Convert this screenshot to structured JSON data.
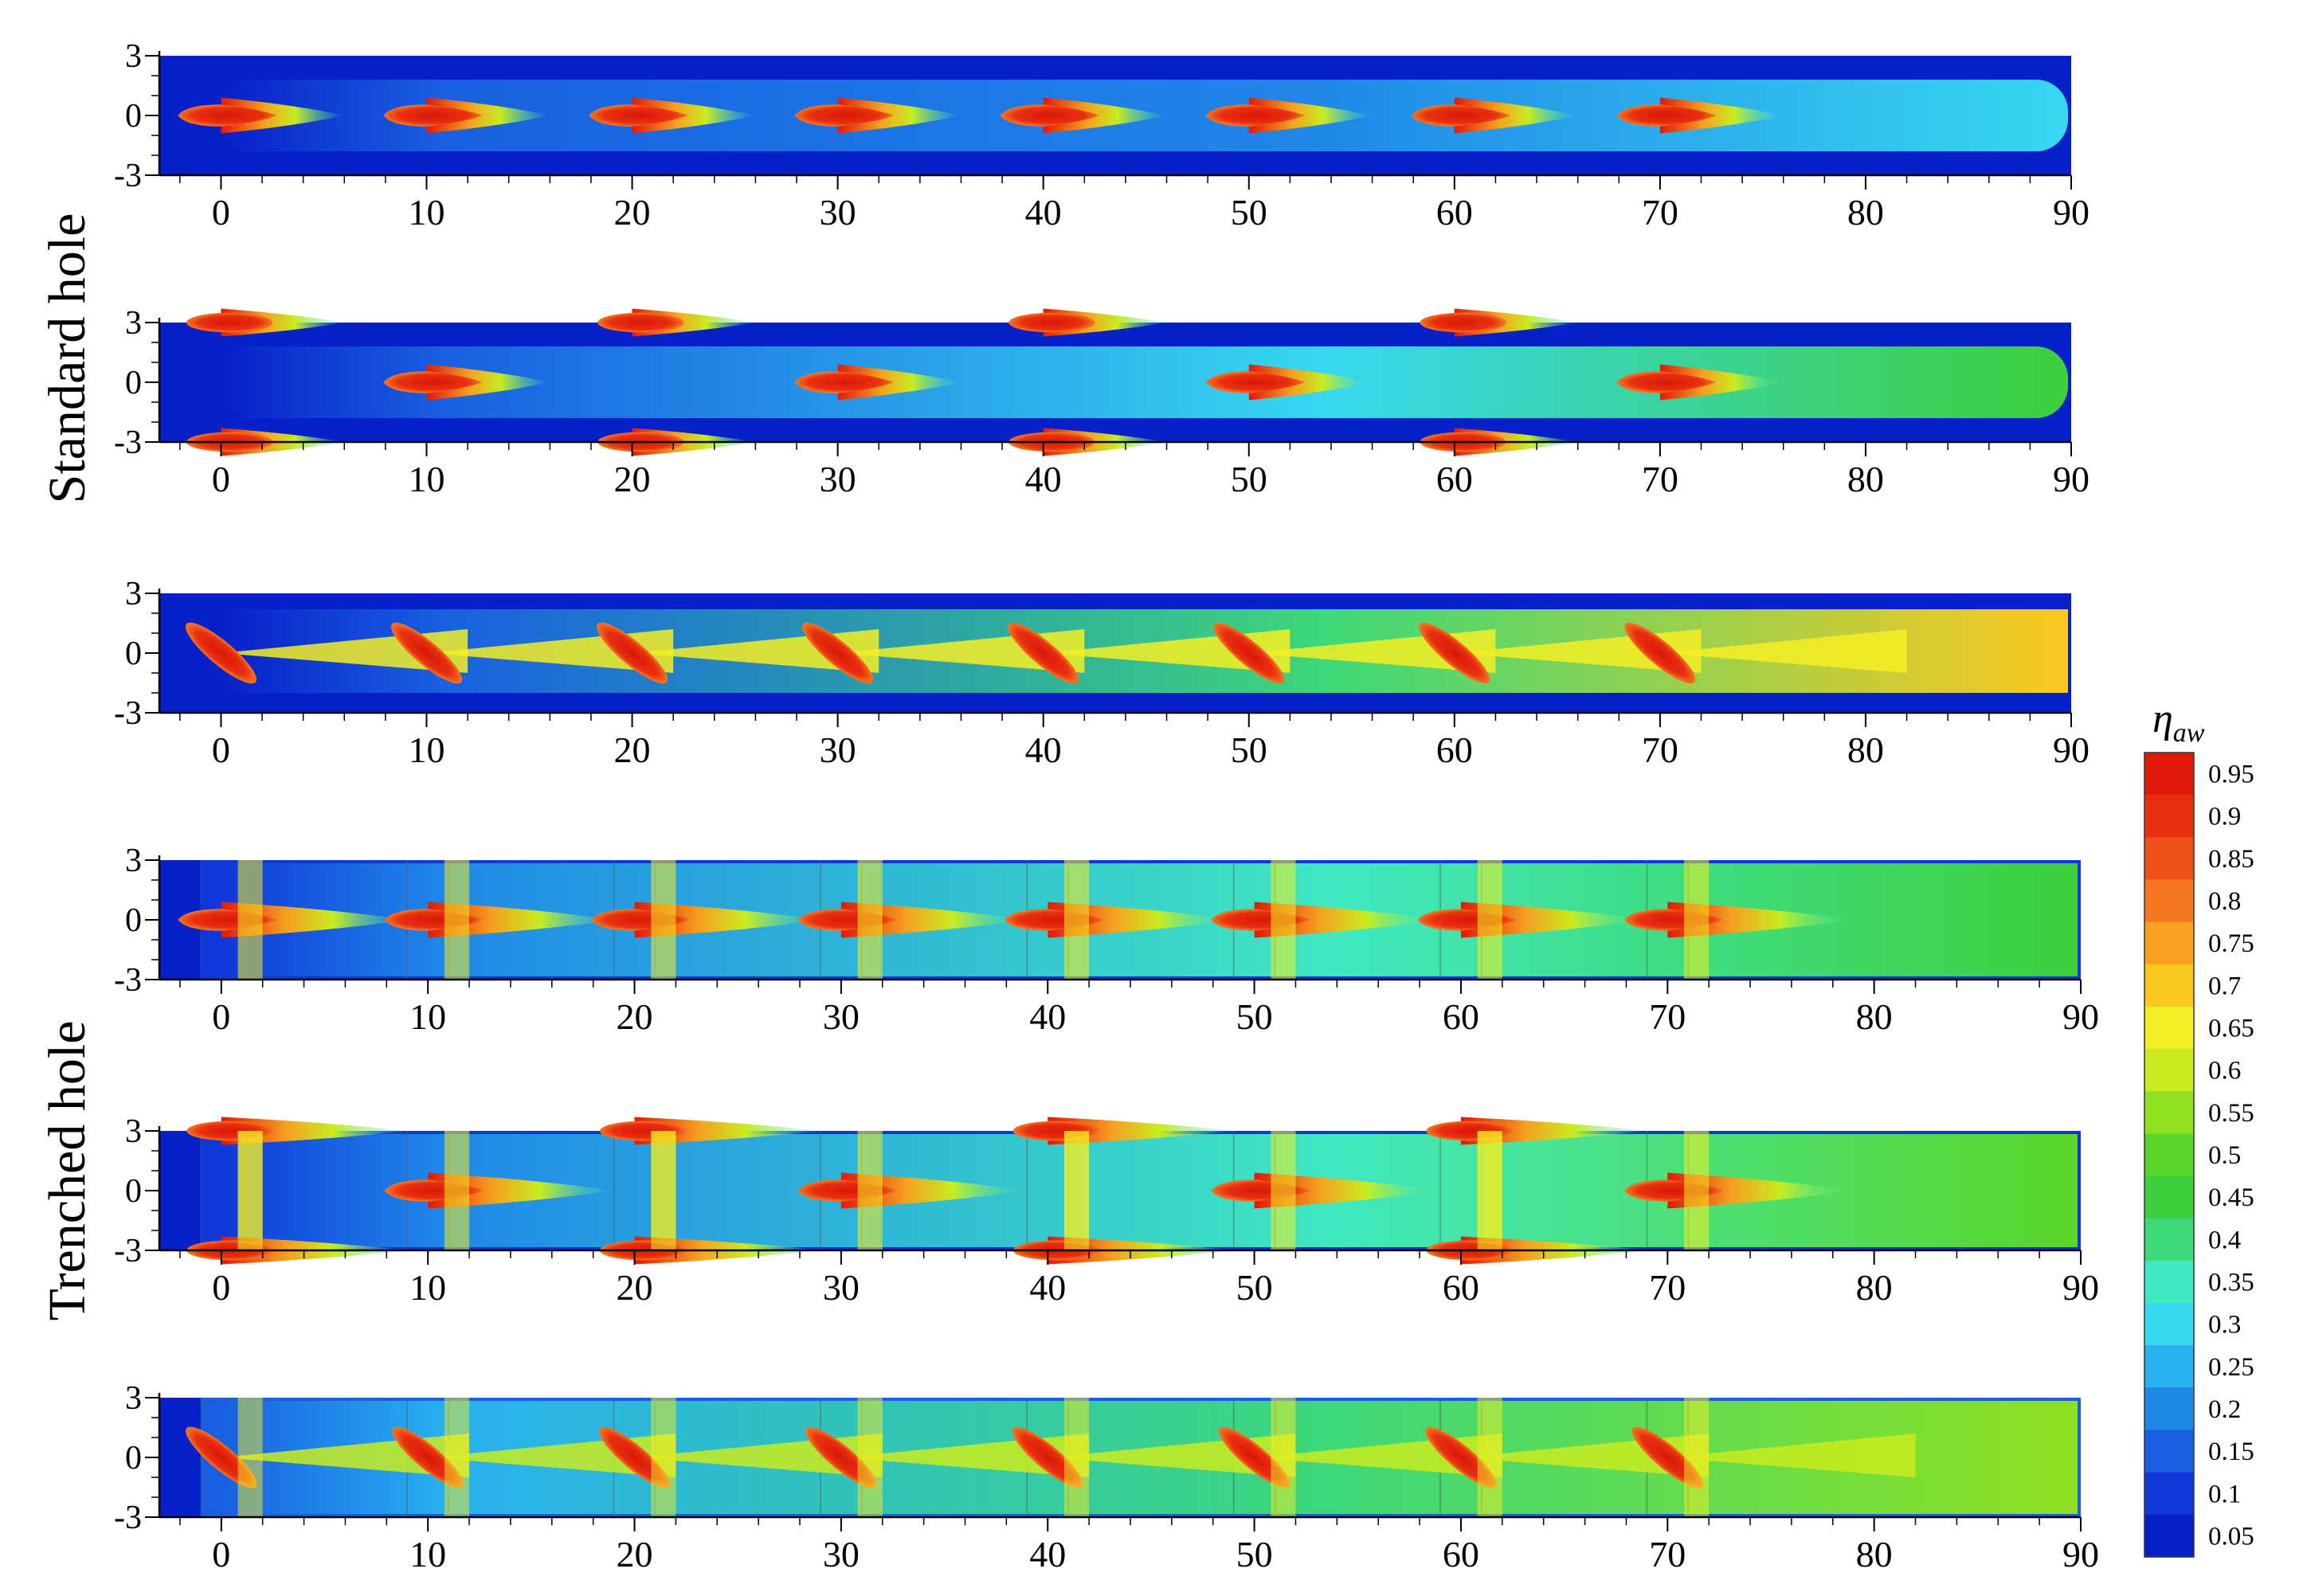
{
  "group_labels": {
    "standard": "Standard hole",
    "trenched": "Trenched hole"
  },
  "colorbar": {
    "title_symbol": "η",
    "title_subscript": "aw",
    "levels": [
      "0.95",
      "0.9",
      "0.85",
      "0.8",
      "0.75",
      "0.7",
      "0.65",
      "0.6",
      "0.55",
      "0.5",
      "0.45",
      "0.4",
      "0.35",
      "0.3",
      "0.25",
      "0.2",
      "0.15",
      "0.1",
      "0.05"
    ],
    "colors": [
      "#e01a0a",
      "#e83010",
      "#f0501a",
      "#f57820",
      "#faa020",
      "#fbc820",
      "#f4ee25",
      "#c8ec20",
      "#8ee020",
      "#5ad628",
      "#3ecf3c",
      "#3ed878",
      "#40e8c0",
      "#38d8f0",
      "#28b0f0",
      "#2088e8",
      "#1860e0",
      "#1038d8",
      "#0820c8"
    ]
  },
  "chart_data": [
    {
      "type": "heatmap",
      "group": "Standard hole",
      "xlim": [
        -3,
        90
      ],
      "ylim": [
        -3,
        3
      ],
      "x_ticks": [
        0,
        10,
        20,
        30,
        40,
        50,
        60,
        70,
        80,
        90
      ],
      "y_ticks": [
        3,
        0,
        -3
      ],
      "hole_shape": "standard",
      "holes": [
        {
          "x": 0,
          "y": 0
        },
        {
          "x": 10,
          "y": 0
        },
        {
          "x": 20,
          "y": 0
        },
        {
          "x": 30,
          "y": 0
        },
        {
          "x": 40,
          "y": 0
        },
        {
          "x": 50,
          "y": 0
        },
        {
          "x": 60,
          "y": 0
        },
        {
          "x": 70,
          "y": 0
        }
      ],
      "background_eta": 0.05,
      "downstream_eta": 0.3,
      "plume_eta": 0.5
    },
    {
      "type": "heatmap",
      "group": "Standard hole",
      "xlim": [
        -3,
        90
      ],
      "ylim": [
        -3,
        3
      ],
      "x_ticks": [
        0,
        10,
        20,
        30,
        40,
        50,
        60,
        70,
        80,
        90
      ],
      "y_ticks": [
        3,
        0,
        -3
      ],
      "hole_shape": "standard",
      "holes": [
        {
          "x": 0,
          "y": 3
        },
        {
          "x": 0,
          "y": -3
        },
        {
          "x": 10,
          "y": 0
        },
        {
          "x": 20,
          "y": 3
        },
        {
          "x": 20,
          "y": -3
        },
        {
          "x": 30,
          "y": 0
        },
        {
          "x": 40,
          "y": 3
        },
        {
          "x": 40,
          "y": -3
        },
        {
          "x": 50,
          "y": 0
        },
        {
          "x": 60,
          "y": 3
        },
        {
          "x": 60,
          "y": -3
        },
        {
          "x": 70,
          "y": 0
        }
      ],
      "background_eta": 0.05,
      "downstream_eta": 0.45,
      "plume_eta": 0.55
    },
    {
      "type": "heatmap",
      "group": "Standard hole",
      "xlim": [
        -3,
        90
      ],
      "ylim": [
        -3,
        3
      ],
      "x_ticks": [
        0,
        10,
        20,
        30,
        40,
        50,
        60,
        70,
        80,
        90
      ],
      "y_ticks": [
        3,
        0,
        -3
      ],
      "hole_shape": "standard-compound",
      "holes": [
        {
          "x": 0,
          "y": 0
        },
        {
          "x": 10,
          "y": 0
        },
        {
          "x": 20,
          "y": 0
        },
        {
          "x": 30,
          "y": 0
        },
        {
          "x": 40,
          "y": 0
        },
        {
          "x": 50,
          "y": 0
        },
        {
          "x": 60,
          "y": 0
        },
        {
          "x": 70,
          "y": 0
        }
      ],
      "background_eta": 0.05,
      "downstream_eta": 0.7,
      "plume_eta": 0.65
    },
    {
      "type": "heatmap",
      "group": "Trenched hole",
      "xlim": [
        -3,
        90
      ],
      "ylim": [
        -3,
        3
      ],
      "x_ticks": [
        0,
        10,
        20,
        30,
        40,
        50,
        60,
        70,
        80,
        90
      ],
      "y_ticks": [
        3,
        0,
        -3
      ],
      "hole_shape": "trenched",
      "holes": [
        {
          "x": 0,
          "y": 0
        },
        {
          "x": 10,
          "y": 0
        },
        {
          "x": 20,
          "y": 0
        },
        {
          "x": 30,
          "y": 0
        },
        {
          "x": 40,
          "y": 0
        },
        {
          "x": 50,
          "y": 0
        },
        {
          "x": 60,
          "y": 0
        },
        {
          "x": 70,
          "y": 0
        }
      ],
      "background_eta": 0.1,
      "downstream_eta": 0.45,
      "plume_eta": 0.6
    },
    {
      "type": "heatmap",
      "group": "Trenched hole",
      "xlim": [
        -3,
        90
      ],
      "ylim": [
        -3,
        3
      ],
      "x_ticks": [
        0,
        10,
        20,
        30,
        40,
        50,
        60,
        70,
        80,
        90
      ],
      "y_ticks": [
        3,
        0,
        -3
      ],
      "hole_shape": "trenched",
      "holes": [
        {
          "x": 0,
          "y": 3
        },
        {
          "x": 0,
          "y": -3
        },
        {
          "x": 10,
          "y": 0
        },
        {
          "x": 20,
          "y": 3
        },
        {
          "x": 20,
          "y": -3
        },
        {
          "x": 30,
          "y": 0
        },
        {
          "x": 40,
          "y": 3
        },
        {
          "x": 40,
          "y": -3
        },
        {
          "x": 50,
          "y": 0
        },
        {
          "x": 60,
          "y": 3
        },
        {
          "x": 60,
          "y": -3
        },
        {
          "x": 70,
          "y": 0
        }
      ],
      "background_eta": 0.1,
      "downstream_eta": 0.5,
      "plume_eta": 0.6
    },
    {
      "type": "heatmap",
      "group": "Trenched hole",
      "xlim": [
        -3,
        90
      ],
      "ylim": [
        -3,
        3
      ],
      "x_ticks": [
        0,
        10,
        20,
        30,
        40,
        50,
        60,
        70,
        80,
        90
      ],
      "y_ticks": [
        3,
        0,
        -3
      ],
      "hole_shape": "trenched-compound",
      "holes": [
        {
          "x": 0,
          "y": 0
        },
        {
          "x": 10,
          "y": 0
        },
        {
          "x": 20,
          "y": 0
        },
        {
          "x": 30,
          "y": 0
        },
        {
          "x": 40,
          "y": 0
        },
        {
          "x": 50,
          "y": 0
        },
        {
          "x": 60,
          "y": 0
        },
        {
          "x": 70,
          "y": 0
        }
      ],
      "background_eta": 0.15,
      "downstream_eta": 0.55,
      "plume_eta": 0.6
    }
  ]
}
